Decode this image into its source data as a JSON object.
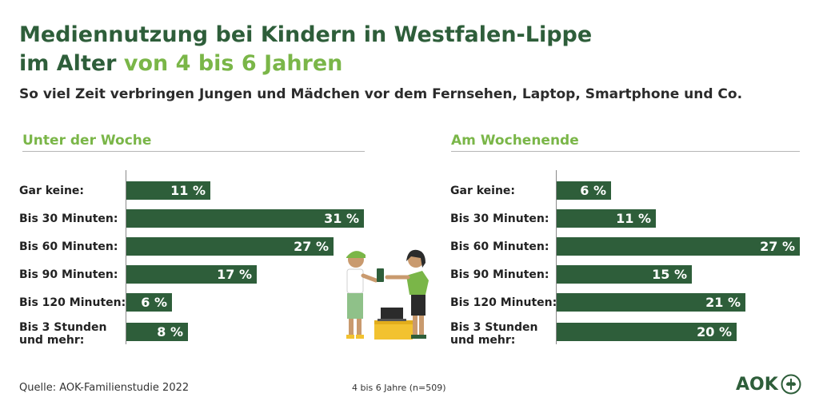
{
  "title": {
    "line1": "Mediennutzung bei Kindern in Westfalen-Lippe",
    "line2_prefix": "im Alter ",
    "line2_accent": "von 4 bis 6 Jahren"
  },
  "subtitle": "So viel Zeit verbringen Jungen und Mädchen vor dem Fernsehen, Laptop, Smartphone und Co.",
  "colors": {
    "bar": "#2e5e3a",
    "accent": "#7ab648",
    "title": "#2e5e3a"
  },
  "chart_data": [
    {
      "type": "bar",
      "orientation": "horizontal",
      "title": "Unter der Woche",
      "categories": [
        "Gar keine:",
        "Bis 30 Minuten:",
        "Bis 60 Minuten:",
        "Bis 90 Minuten:",
        "Bis 120 Minuten:",
        "Bis 3 Stunden und mehr:"
      ],
      "values": [
        11,
        31,
        27,
        17,
        6,
        8
      ],
      "value_labels": [
        "11 %",
        "31 %",
        "27 %",
        "17 %",
        "6 %",
        "8 %"
      ],
      "unit": "%",
      "xlim": [
        0,
        31
      ]
    },
    {
      "type": "bar",
      "orientation": "horizontal",
      "title": "Am Wochenende",
      "categories": [
        "Gar keine:",
        "Bis 30 Minuten:",
        "Bis 60 Minuten:",
        "Bis 90 Minuten:",
        "Bis 120 Minuten:",
        "Bis 3 Stunden und mehr:"
      ],
      "values": [
        6,
        11,
        27,
        15,
        21,
        20
      ],
      "value_labels": [
        "6 %",
        "11 %",
        "27 %",
        "15 %",
        "21 %",
        "20 %"
      ],
      "unit": "%",
      "xlim": [
        0,
        27
      ]
    }
  ],
  "footer": {
    "source": "Quelle: AOK-Familienstudie 2022",
    "sample": "4 bis 6 Jahre (n=509)",
    "logo": "AOK"
  }
}
